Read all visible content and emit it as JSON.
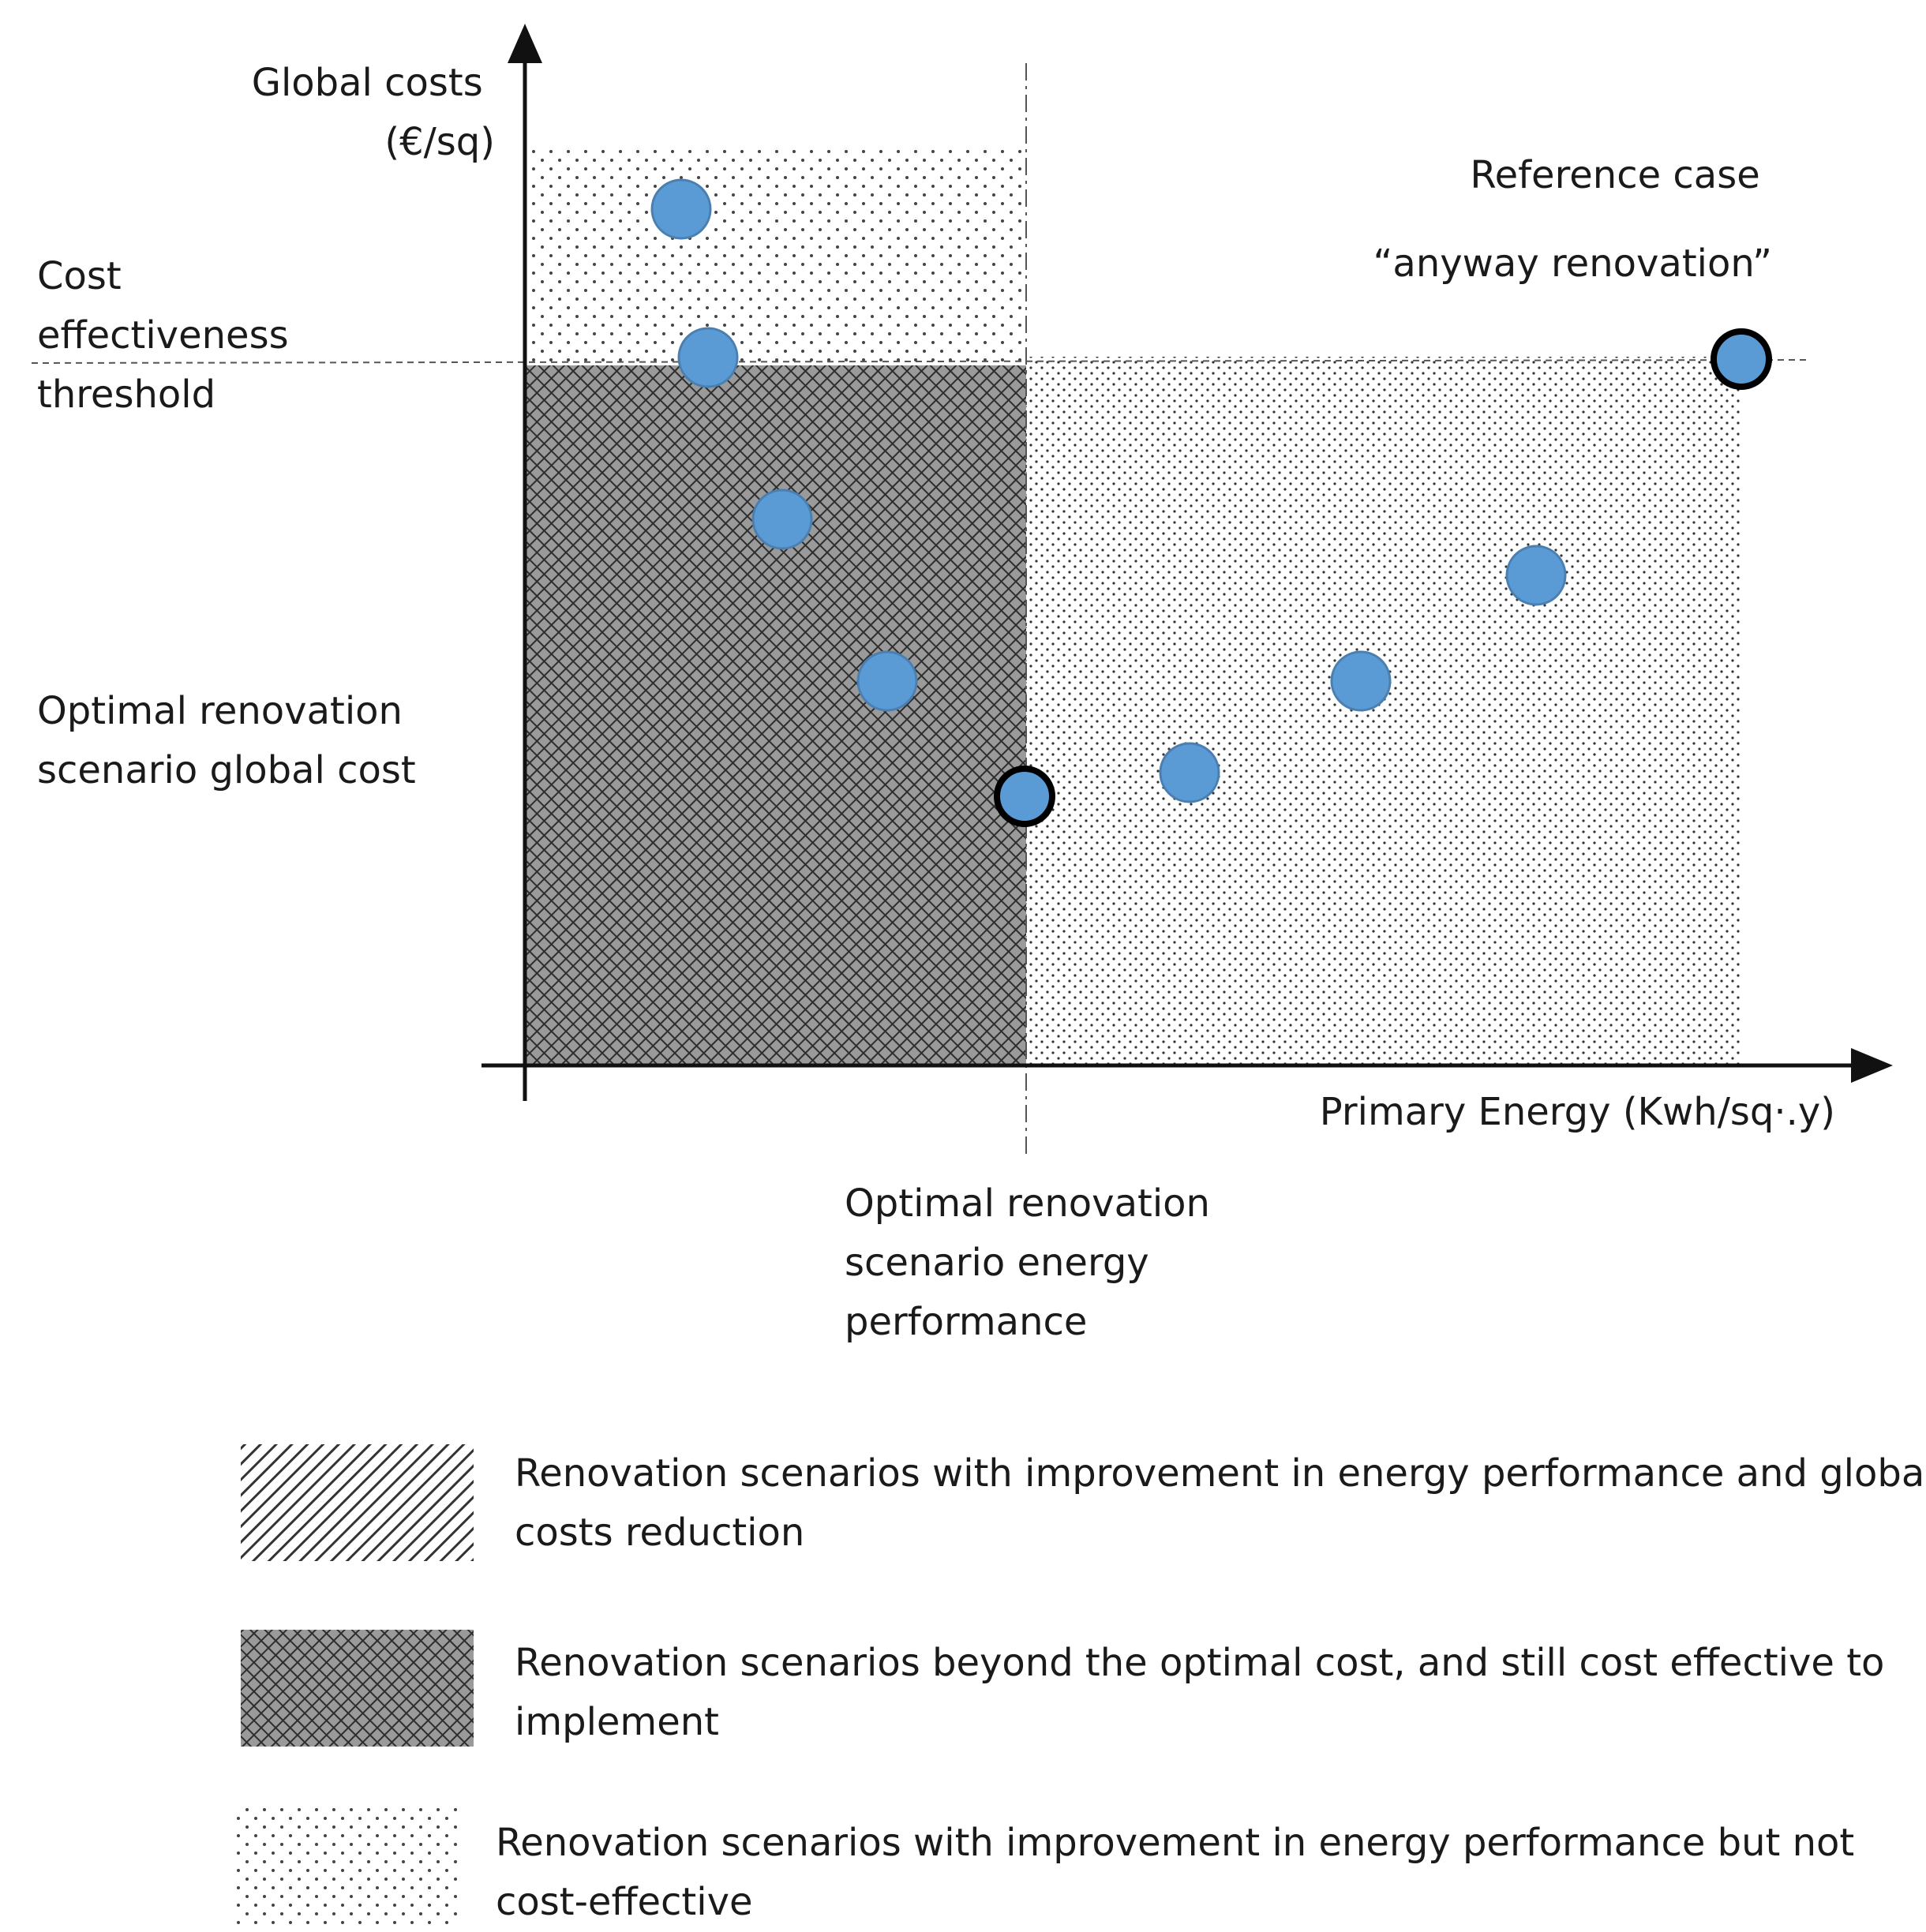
{
  "chart_data": {
    "type": "scatter",
    "title": "",
    "xlabel": "Primary Energy (Kwh/sq·.y)",
    "ylabel": [
      "Global costs",
      "(€/sq)"
    ],
    "threshold_label": [
      "Cost",
      "effectiveness",
      "threshold"
    ],
    "optimal_cost_label": [
      "Optimal renovation",
      "scenario global cost"
    ],
    "optimal_energy_label": [
      "Optimal renovation",
      "scenario energy",
      "performance"
    ],
    "reference_label": [
      "Reference case",
      "“anyway renovation”"
    ],
    "colors": {
      "point": "#5b9bd5",
      "point_edge": "#4a7fb0",
      "highlight_edge": "#000000",
      "text": "#1a1a1a"
    },
    "grid": false
  },
  "legend": [
    {
      "pattern": "diagonal-hatch",
      "lines": [
        "Renovation scenarios with improvement in energy performance and global",
        "costs reduction"
      ]
    },
    {
      "pattern": "cross-hatch",
      "lines": [
        "Renovation scenarios beyond the optimal cost, and still cost effective to",
        "implement"
      ]
    },
    {
      "pattern": "dots",
      "lines": [
        "Renovation scenarios with improvement in energy performance but not",
        "cost-effective"
      ]
    }
  ]
}
